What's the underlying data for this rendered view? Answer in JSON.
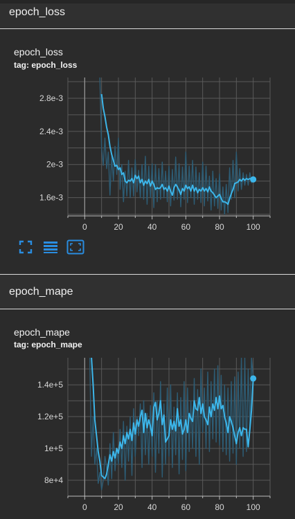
{
  "sections": [
    {
      "title": "epoch_loss"
    },
    {
      "title": "epoch_mape"
    }
  ],
  "cards": [
    {
      "title": "epoch_loss",
      "tag": "tag: epoch_loss"
    },
    {
      "title": "epoch_mape",
      "tag": "tag: epoch_mape"
    }
  ],
  "toolbar": {
    "fullscreen_icon": "expand-icon",
    "data_icon": "lines-icon",
    "fit_icon": "fit-domain-icon"
  },
  "colors": {
    "smoothed": "#3cb6ea",
    "raw": "#2d5c74",
    "grid": "#5a5a5a"
  },
  "chart_data": [
    {
      "type": "line",
      "title": "epoch_loss",
      "xlabel": "",
      "ylabel": "",
      "x_ticks": [
        "0",
        "20",
        "40",
        "60",
        "80",
        "100"
      ],
      "y_ticks": [
        "1.6e-3",
        "2e-3",
        "2.4e-3",
        "2.8e-3"
      ],
      "xlim": [
        -10,
        110
      ],
      "ylim": [
        0.00138,
        0.00305
      ],
      "grid": true,
      "series": [
        {
          "role": "smoothed",
          "x": [
            10,
            11,
            12,
            13,
            14,
            15,
            16,
            17,
            18,
            19,
            20,
            21,
            22,
            23,
            24,
            25,
            26,
            27,
            28,
            29,
            30,
            31,
            32,
            33,
            34,
            35,
            36,
            37,
            38,
            39,
            40,
            41,
            42,
            43,
            44,
            45,
            46,
            47,
            48,
            49,
            50,
            51,
            52,
            53,
            54,
            55,
            56,
            57,
            58,
            59,
            60,
            61,
            62,
            63,
            64,
            65,
            66,
            67,
            68,
            69,
            70,
            71,
            72,
            73,
            74,
            75,
            76,
            77,
            78,
            79,
            80,
            81,
            82,
            83,
            84,
            85,
            86,
            87,
            88,
            89,
            90,
            91,
            92,
            93,
            94,
            95,
            96,
            97,
            98,
            99,
            100
          ],
          "y": [
            0.00285,
            0.00268,
            0.00258,
            0.00245,
            0.00236,
            0.00222,
            0.00212,
            0.00205,
            0.00198,
            0.00199,
            0.00194,
            0.00196,
            0.00188,
            0.0019,
            0.0018,
            0.00178,
            0.00181,
            0.0018,
            0.00183,
            0.00178,
            0.00187,
            0.00183,
            0.00186,
            0.00178,
            0.00182,
            0.00175,
            0.0018,
            0.00177,
            0.00182,
            0.00174,
            0.0018,
            0.00176,
            0.0017,
            0.00172,
            0.00171,
            0.00172,
            0.00176,
            0.0017,
            0.00172,
            0.00168,
            0.00174,
            0.00168,
            0.00163,
            0.00172,
            0.00176,
            0.00173,
            0.00169,
            0.00164,
            0.00171,
            0.00168,
            0.00175,
            0.00171,
            0.00173,
            0.00168,
            0.00175,
            0.00168,
            0.00172,
            0.00166,
            0.0017,
            0.00168,
            0.00172,
            0.00168,
            0.00171,
            0.00167,
            0.00173,
            0.00168,
            0.00166,
            0.00163,
            0.0016,
            0.00162,
            0.00164,
            0.00159,
            0.00155,
            0.00155,
            0.00154,
            0.00152,
            0.00159,
            0.00165,
            0.0017,
            0.00177,
            0.00178,
            0.00179,
            0.00182,
            0.0018,
            0.00183,
            0.00181,
            0.00183,
            0.00182,
            0.00183,
            0.00182,
            0.00182
          ]
        },
        {
          "role": "raw",
          "x": [
            9,
            10,
            11,
            12,
            13,
            14,
            15,
            16,
            17,
            18,
            19,
            20,
            21,
            22,
            23,
            24,
            25,
            26,
            27,
            28,
            29,
            30,
            31,
            32,
            33,
            34,
            35,
            36,
            37,
            38,
            39,
            40,
            41,
            42,
            43,
            44,
            45,
            46,
            47,
            48,
            49,
            50,
            51,
            52,
            53,
            54,
            55,
            56,
            57,
            58,
            59,
            60,
            61,
            62,
            63,
            64,
            65,
            66,
            67,
            68,
            69,
            70,
            71,
            72,
            73,
            74,
            75,
            76,
            77,
            78,
            79,
            80,
            81,
            82,
            83,
            84,
            85,
            86,
            87,
            88,
            89,
            90,
            91,
            92,
            93,
            94,
            95,
            96,
            97,
            98,
            99,
            100
          ],
          "y": [
            0.00305,
            0.0022,
            0.00199,
            0.00232,
            0.00195,
            0.00215,
            0.00163,
            0.0021,
            0.0018,
            0.00222,
            0.00188,
            0.00232,
            0.0017,
            0.002,
            0.00155,
            0.00192,
            0.00162,
            0.00205,
            0.0016,
            0.00196,
            0.00162,
            0.00206,
            0.00167,
            0.00193,
            0.0016,
            0.002,
            0.00158,
            0.0021,
            0.00152,
            0.00198,
            0.0016,
            0.00201,
            0.00148,
            0.002,
            0.00155,
            0.00195,
            0.00158,
            0.00203,
            0.0016,
            0.00192,
            0.00155,
            0.00198,
            0.0015,
            0.00194,
            0.00157,
            0.00209,
            0.00158,
            0.00201,
            0.00149,
            0.00197,
            0.00158,
            0.00215,
            0.00154,
            0.00198,
            0.0016,
            0.00205,
            0.00152,
            0.00197,
            0.00158,
            0.0019,
            0.00154,
            0.00203,
            0.0015,
            0.00198,
            0.00156,
            0.00186,
            0.00145,
            0.00192,
            0.0015,
            0.00183,
            0.00147,
            0.00189,
            0.00145,
            0.00173,
            0.0014,
            0.00176,
            0.00142,
            0.00196,
            0.00158,
            0.00205,
            0.0016,
            0.00215,
            0.00168,
            0.00195,
            0.0017,
            0.0019,
            0.00175,
            0.00188,
            0.00175,
            0.0019,
            0.00178,
            0.00183
          ]
        }
      ]
    },
    {
      "type": "line",
      "title": "epoch_mape",
      "xlabel": "",
      "ylabel": "",
      "x_ticks": [
        "0",
        "20",
        "40",
        "60",
        "80",
        "100"
      ],
      "y_ticks": [
        "8e+4",
        "1e+5",
        "1.2e+5",
        "1.4e+5"
      ],
      "xlim": [
        -10,
        110
      ],
      "ylim": [
        70000,
        157000
      ],
      "grid": true,
      "series": [
        {
          "role": "smoothed",
          "x": [
            4,
            5,
            6,
            7,
            8,
            9,
            10,
            11,
            12,
            13,
            14,
            15,
            16,
            17,
            18,
            19,
            20,
            21,
            22,
            23,
            24,
            25,
            26,
            27,
            28,
            29,
            30,
            31,
            32,
            33,
            34,
            35,
            36,
            37,
            38,
            39,
            40,
            41,
            42,
            43,
            44,
            45,
            46,
            47,
            48,
            49,
            50,
            51,
            52,
            53,
            54,
            55,
            56,
            57,
            58,
            59,
            60,
            61,
            62,
            63,
            64,
            65,
            66,
            67,
            68,
            69,
            70,
            71,
            72,
            73,
            74,
            75,
            76,
            77,
            78,
            79,
            80,
            81,
            82,
            83,
            84,
            85,
            86,
            87,
            88,
            89,
            90,
            91,
            92,
            93,
            94,
            95,
            96,
            97,
            98,
            99,
            100
          ],
          "y": [
            157000,
            140000,
            118000,
            108000,
            98000,
            92000,
            83000,
            82000,
            81000,
            84000,
            90000,
            96000,
            92000,
            98000,
            94000,
            100000,
            97000,
            104000,
            100000,
            108000,
            103000,
            110000,
            106000,
            112000,
            105000,
            116000,
            109000,
            118000,
            114000,
            120000,
            124000,
            110000,
            122000,
            113000,
            118000,
            114000,
            108000,
            126000,
            129000,
            118000,
            122000,
            130000,
            115000,
            121000,
            104000,
            106000,
            108000,
            118000,
            112000,
            117000,
            111000,
            125000,
            114000,
            118000,
            109000,
            112000,
            118000,
            110000,
            122000,
            119000,
            117000,
            130000,
            125000,
            124000,
            132000,
            122000,
            128000,
            120000,
            118000,
            115000,
            126000,
            120000,
            128000,
            124000,
            132000,
            125000,
            133000,
            125000,
            127000,
            120000,
            116000,
            110000,
            120000,
            117000,
            113000,
            108000,
            103000,
            110000,
            113000,
            108000,
            113000,
            112000,
            112000,
            101000,
            112000,
            124000,
            144000
          ]
        },
        {
          "role": "raw",
          "x": [
            3,
            4,
            5,
            6,
            7,
            8,
            9,
            10,
            11,
            12,
            13,
            14,
            15,
            16,
            17,
            18,
            19,
            20,
            21,
            22,
            23,
            24,
            25,
            26,
            27,
            28,
            29,
            30,
            31,
            32,
            33,
            34,
            35,
            36,
            37,
            38,
            39,
            40,
            41,
            42,
            43,
            44,
            45,
            46,
            47,
            48,
            49,
            50,
            51,
            52,
            53,
            54,
            55,
            56,
            57,
            58,
            59,
            60,
            61,
            62,
            63,
            64,
            65,
            66,
            67,
            68,
            69,
            70,
            71,
            72,
            73,
            74,
            75,
            76,
            77,
            78,
            79,
            80,
            81,
            82,
            83,
            84,
            85,
            86,
            87,
            88,
            89,
            90,
            91,
            92,
            93,
            94,
            95,
            96,
            97,
            98,
            99,
            100
          ],
          "y": [
            157000,
            95000,
            120000,
            90000,
            100000,
            78000,
            85000,
            74000,
            80000,
            95000,
            88000,
            77000,
            103000,
            81000,
            110000,
            86000,
            100000,
            90000,
            112000,
            88000,
            117000,
            80000,
            114000,
            92000,
            120000,
            83000,
            125000,
            95000,
            120000,
            108000,
            128000,
            88000,
            130000,
            96000,
            122000,
            90000,
            127000,
            95000,
            135000,
            85000,
            130000,
            97000,
            142000,
            82000,
            128000,
            90000,
            138000,
            95000,
            140000,
            88000,
            126000,
            96000,
            135000,
            84000,
            132000,
            93000,
            142000,
            86000,
            138000,
            98000,
            130000,
            100000,
            144000,
            95000,
            137000,
            90000,
            150000,
            110000,
            138000,
            100000,
            148000,
            98000,
            142000,
            106000,
            150000,
            104000,
            152000,
            102000,
            146000,
            98000,
            140000,
            96000,
            138000,
            92000,
            142000,
            97000,
            145000,
            90000,
            148000,
            100000,
            157000,
            95000,
            157000,
            98000,
            150000,
            110000,
            157000,
            144000
          ]
        }
      ]
    }
  ]
}
